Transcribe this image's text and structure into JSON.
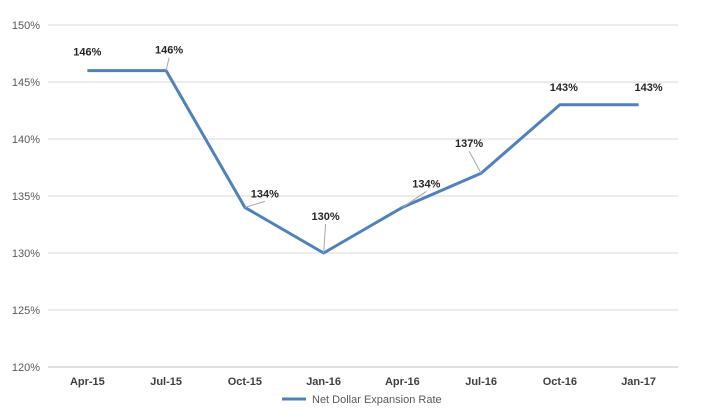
{
  "chart_data": {
    "type": "line",
    "title": "",
    "xlabel": "",
    "ylabel": "",
    "ylim": [
      120,
      150
    ],
    "y_tick_step": 5,
    "y_tick_suffix": "%",
    "grid": "horizontal",
    "legend_position": "bottom",
    "categories": [
      "Apr-15",
      "Jul-15",
      "Oct-15",
      "Jan-16",
      "Apr-16",
      "Jul-16",
      "Oct-16",
      "Jan-17"
    ],
    "series": [
      {
        "name": "Net Dollar Expansion Rate",
        "color": "#4f81bd",
        "values": [
          146,
          146,
          134,
          130,
          134,
          137,
          143,
          143
        ],
        "labels": [
          "146%",
          "146%",
          "134%",
          "130%",
          "134%",
          "137%",
          "143%",
          "143%"
        ]
      }
    ]
  }
}
